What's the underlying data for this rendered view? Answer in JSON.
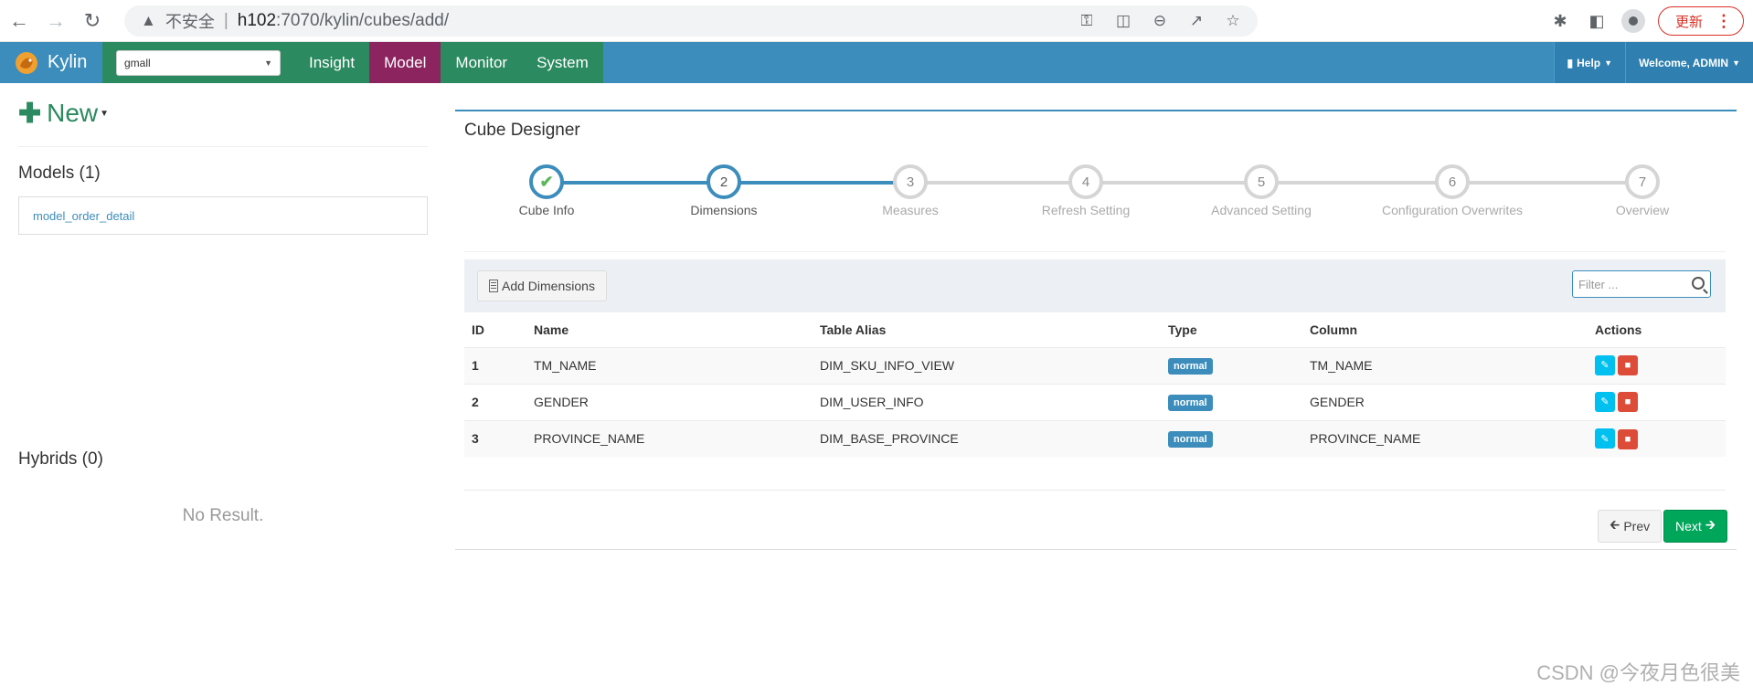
{
  "browser": {
    "insecure_label": "不安全",
    "url_host": "h102",
    "url_path": ":7070/kylin/cubes/add/",
    "update_label": "更新"
  },
  "navbar": {
    "brand": "Kylin",
    "project": "gmall",
    "items": [
      {
        "label": "Insight",
        "active": false
      },
      {
        "label": "Model",
        "active": true
      },
      {
        "label": "Monitor",
        "active": false
      },
      {
        "label": "System",
        "active": false
      }
    ],
    "help_label": "Help",
    "welcome_label": "Welcome, ADMIN"
  },
  "left": {
    "new_label": "New",
    "models_title": "Models (1)",
    "models": [
      "model_order_detail"
    ],
    "hybrids_title": "Hybrids (0)",
    "no_result": "No Result."
  },
  "designer": {
    "title": "Cube Designer",
    "steps": [
      {
        "num": "1",
        "label": "Cube Info",
        "state": "done"
      },
      {
        "num": "2",
        "label": "Dimensions",
        "state": "current"
      },
      {
        "num": "3",
        "label": "Measures",
        "state": "todo"
      },
      {
        "num": "4",
        "label": "Refresh Setting",
        "state": "todo"
      },
      {
        "num": "5",
        "label": "Advanced Setting",
        "state": "todo"
      },
      {
        "num": "6",
        "label": "Configuration Overwrites",
        "state": "todo"
      },
      {
        "num": "7",
        "label": "Overview",
        "state": "todo"
      }
    ],
    "add_dimensions_label": "Add Dimensions",
    "filter_placeholder": "Filter ...",
    "columns": [
      "ID",
      "Name",
      "Table Alias",
      "Type",
      "Column",
      "Actions"
    ],
    "rows": [
      {
        "id": "1",
        "name": "TM_NAME",
        "table_alias": "DIM_SKU_INFO_VIEW",
        "type": "normal",
        "column": "TM_NAME"
      },
      {
        "id": "2",
        "name": "GENDER",
        "table_alias": "DIM_USER_INFO",
        "type": "normal",
        "column": "GENDER"
      },
      {
        "id": "3",
        "name": "PROVINCE_NAME",
        "table_alias": "DIM_BASE_PROVINCE",
        "type": "normal",
        "column": "PROVINCE_NAME"
      }
    ],
    "prev_label": "Prev",
    "next_label": "Next"
  },
  "watermark": "CSDN @今夜月色很美"
}
